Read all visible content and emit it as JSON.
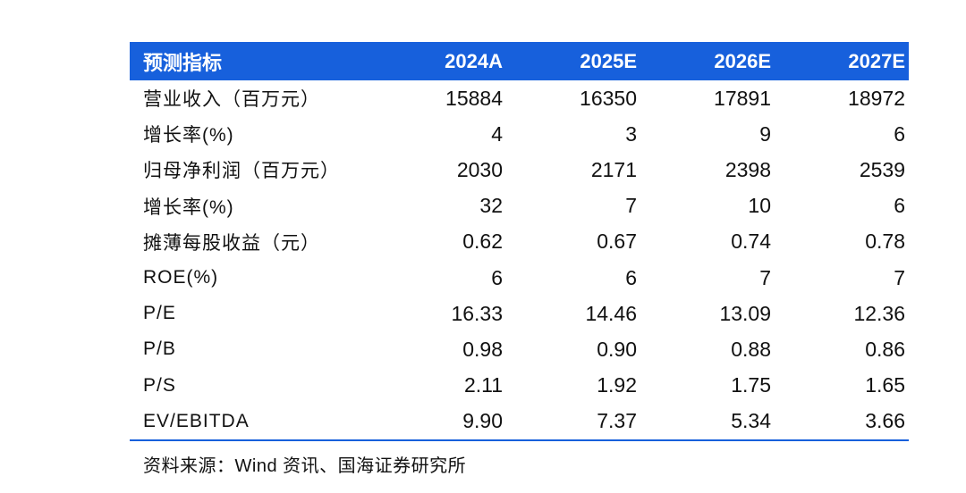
{
  "table": {
    "header": [
      "预测指标",
      "2024A",
      "2025E",
      "2026E",
      "2027E"
    ],
    "rows": [
      {
        "label": "营业收入（百万元）",
        "values": [
          "15884",
          "16350",
          "17891",
          "18972"
        ]
      },
      {
        "label": "增长率(%)",
        "values": [
          "4",
          "3",
          "9",
          "6"
        ]
      },
      {
        "label": "归母净利润（百万元）",
        "values": [
          "2030",
          "2171",
          "2398",
          "2539"
        ]
      },
      {
        "label": "增长率(%)",
        "values": [
          "32",
          "7",
          "10",
          "6"
        ]
      },
      {
        "label": "摊薄每股收益（元）",
        "values": [
          "0.62",
          "0.67",
          "0.74",
          "0.78"
        ]
      },
      {
        "label": "ROE(%)",
        "values": [
          "6",
          "6",
          "7",
          "7"
        ]
      },
      {
        "label": "P/E",
        "values": [
          "16.33",
          "14.46",
          "13.09",
          "12.36"
        ]
      },
      {
        "label": "P/B",
        "values": [
          "0.98",
          "0.90",
          "0.88",
          "0.86"
        ]
      },
      {
        "label": "P/S",
        "values": [
          "2.11",
          "1.92",
          "1.75",
          "1.65"
        ]
      },
      {
        "label": "EV/EBITDA",
        "values": [
          "9.90",
          "7.37",
          "5.34",
          "3.66"
        ]
      }
    ]
  },
  "source": "资料来源：Wind 资讯、国海证券研究所",
  "colors": {
    "header_bg": "#1760dc",
    "header_text": "#ffffff",
    "rule": "#1760dc"
  }
}
